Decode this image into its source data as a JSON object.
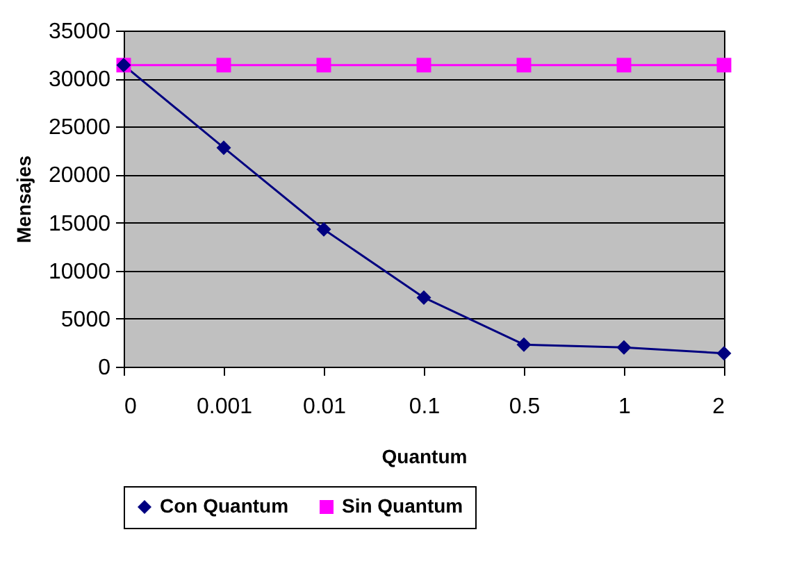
{
  "chart_data": {
    "type": "line",
    "xlabel": "Quantum",
    "ylabel": "Mensajes",
    "categories": [
      "0",
      "0.001",
      "0.01",
      "0.1",
      "0.5",
      "1",
      "2"
    ],
    "series": [
      {
        "name": "Con Quantum",
        "color": "#000080",
        "marker": "diamond",
        "values": [
          31400,
          22800,
          14300,
          7200,
          2300,
          2000,
          1400
        ]
      },
      {
        "name": "Sin Quantum",
        "color": "#ff00ff",
        "marker": "square",
        "values": [
          31400,
          31400,
          31400,
          31400,
          31400,
          31400,
          31400
        ]
      }
    ],
    "ylim": [
      0,
      35000
    ],
    "yticks": [
      0,
      5000,
      10000,
      15000,
      20000,
      25000,
      30000,
      35000
    ],
    "grid": "y",
    "legend": "bottom"
  }
}
